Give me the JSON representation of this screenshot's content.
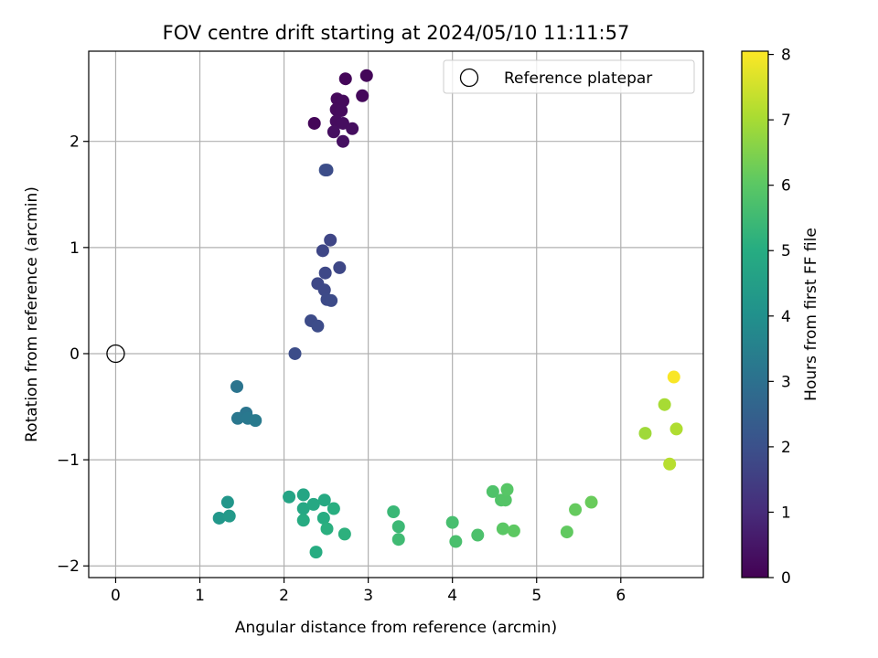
{
  "chart_data": {
    "type": "scatter",
    "title": "FOV centre drift starting at 2024/05/10 11:11:57",
    "xlabel": "Angular distance from reference (arcmin)",
    "ylabel": "Rotation from reference (arcmin)",
    "xlim": [
      -0.32,
      6.98
    ],
    "ylim": [
      -2.11,
      2.85
    ],
    "xticks": [
      0,
      1,
      2,
      3,
      4,
      5,
      6
    ],
    "yticks": [
      -2,
      -1,
      0,
      1,
      2
    ],
    "grid": true,
    "legend": {
      "position": "top-right",
      "entries": [
        "Reference platepar"
      ]
    },
    "reference_point": {
      "x": 0,
      "y": 0,
      "marker": "open-circle"
    },
    "colorbar": {
      "label": "Hours from first FF file",
      "colormap": "viridis",
      "range": [
        0,
        8.05
      ],
      "ticks": [
        0,
        1,
        2,
        3,
        4,
        5,
        6,
        7,
        8
      ]
    },
    "points": [
      {
        "x": 2.36,
        "y": 2.17,
        "c": 0.1
      },
      {
        "x": 2.73,
        "y": 2.59,
        "c": 0.12
      },
      {
        "x": 2.98,
        "y": 2.62,
        "c": 0.14
      },
      {
        "x": 2.93,
        "y": 2.43,
        "c": 0.16
      },
      {
        "x": 2.63,
        "y": 2.4,
        "c": 0.18
      },
      {
        "x": 2.7,
        "y": 2.38,
        "c": 0.2
      },
      {
        "x": 2.62,
        "y": 2.3,
        "c": 0.22
      },
      {
        "x": 2.68,
        "y": 2.29,
        "c": 0.24
      },
      {
        "x": 2.62,
        "y": 2.19,
        "c": 0.26
      },
      {
        "x": 2.7,
        "y": 2.17,
        "c": 0.28
      },
      {
        "x": 2.81,
        "y": 2.12,
        "c": 0.3
      },
      {
        "x": 2.59,
        "y": 2.09,
        "c": 0.32
      },
      {
        "x": 2.7,
        "y": 2.0,
        "c": 0.35
      },
      {
        "x": 2.49,
        "y": 1.73,
        "c": 1.95
      },
      {
        "x": 2.51,
        "y": 1.73,
        "c": 1.9
      },
      {
        "x": 2.55,
        "y": 1.07,
        "c": 1.7
      },
      {
        "x": 2.46,
        "y": 0.97,
        "c": 1.72
      },
      {
        "x": 2.66,
        "y": 0.81,
        "c": 1.74
      },
      {
        "x": 2.49,
        "y": 0.76,
        "c": 1.76
      },
      {
        "x": 2.4,
        "y": 0.66,
        "c": 1.78
      },
      {
        "x": 2.48,
        "y": 0.6,
        "c": 1.8
      },
      {
        "x": 2.51,
        "y": 0.51,
        "c": 1.82
      },
      {
        "x": 2.56,
        "y": 0.5,
        "c": 1.84
      },
      {
        "x": 2.32,
        "y": 0.31,
        "c": 1.86
      },
      {
        "x": 2.4,
        "y": 0.26,
        "c": 1.88
      },
      {
        "x": 2.13,
        "y": 0.0,
        "c": 1.9
      },
      {
        "x": 1.44,
        "y": -0.31,
        "c": 3.1
      },
      {
        "x": 1.55,
        "y": -0.56,
        "c": 3.15
      },
      {
        "x": 1.45,
        "y": -0.61,
        "c": 3.2
      },
      {
        "x": 1.57,
        "y": -0.61,
        "c": 3.25
      },
      {
        "x": 1.66,
        "y": -0.63,
        "c": 3.3
      },
      {
        "x": 1.33,
        "y": -1.4,
        "c": 4.2
      },
      {
        "x": 1.23,
        "y": -1.55,
        "c": 4.25
      },
      {
        "x": 1.35,
        "y": -1.53,
        "c": 4.3
      },
      {
        "x": 2.06,
        "y": -1.35,
        "c": 4.7
      },
      {
        "x": 2.23,
        "y": -1.33,
        "c": 4.75
      },
      {
        "x": 2.23,
        "y": -1.46,
        "c": 4.8
      },
      {
        "x": 2.35,
        "y": -1.42,
        "c": 4.85
      },
      {
        "x": 2.48,
        "y": -1.38,
        "c": 4.9
      },
      {
        "x": 2.23,
        "y": -1.57,
        "c": 4.95
      },
      {
        "x": 2.47,
        "y": -1.55,
        "c": 5.0
      },
      {
        "x": 2.59,
        "y": -1.46,
        "c": 5.05
      },
      {
        "x": 2.51,
        "y": -1.65,
        "c": 5.1
      },
      {
        "x": 2.72,
        "y": -1.7,
        "c": 5.15
      },
      {
        "x": 2.38,
        "y": -1.87,
        "c": 5.0
      },
      {
        "x": 3.3,
        "y": -1.49,
        "c": 5.4
      },
      {
        "x": 3.36,
        "y": -1.63,
        "c": 5.45
      },
      {
        "x": 3.36,
        "y": -1.75,
        "c": 5.5
      },
      {
        "x": 4.0,
        "y": -1.59,
        "c": 5.65
      },
      {
        "x": 4.04,
        "y": -1.77,
        "c": 5.7
      },
      {
        "x": 4.3,
        "y": -1.71,
        "c": 5.75
      },
      {
        "x": 4.48,
        "y": -1.3,
        "c": 5.8
      },
      {
        "x": 4.58,
        "y": -1.38,
        "c": 5.85
      },
      {
        "x": 4.63,
        "y": -1.38,
        "c": 5.9
      },
      {
        "x": 4.65,
        "y": -1.28,
        "c": 5.95
      },
      {
        "x": 4.6,
        "y": -1.65,
        "c": 6.0
      },
      {
        "x": 4.73,
        "y": -1.67,
        "c": 6.05
      },
      {
        "x": 5.36,
        "y": -1.68,
        "c": 6.1
      },
      {
        "x": 5.46,
        "y": -1.47,
        "c": 6.15
      },
      {
        "x": 5.65,
        "y": -1.4,
        "c": 6.2
      },
      {
        "x": 6.29,
        "y": -0.75,
        "c": 6.9
      },
      {
        "x": 6.52,
        "y": -0.48,
        "c": 7.0
      },
      {
        "x": 6.66,
        "y": -0.71,
        "c": 7.1
      },
      {
        "x": 6.58,
        "y": -1.04,
        "c": 7.2
      },
      {
        "x": 6.63,
        "y": -0.22,
        "c": 8.0
      }
    ]
  }
}
